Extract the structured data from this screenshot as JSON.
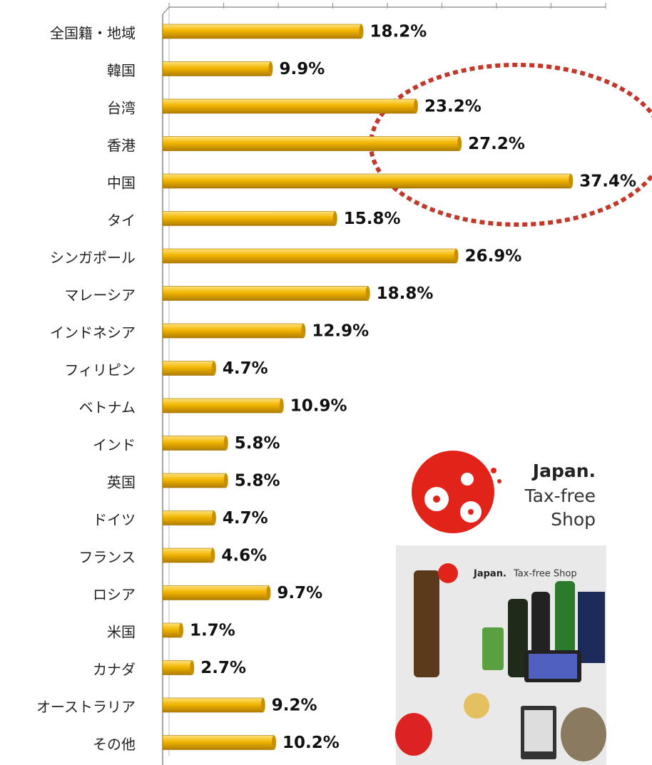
{
  "chart_data": {
    "type": "bar",
    "orientation": "horizontal",
    "categories": [
      "全国籍・地域",
      "韓国",
      "台湾",
      "香港",
      "中国",
      "タイ",
      "シンガポール",
      "マレーシア",
      "インドネシア",
      "フィリピン",
      "ベトナム",
      "インド",
      "英国",
      "ドイツ",
      "フランス",
      "ロシア",
      "米国",
      "カナダ",
      "オーストラリア",
      "その他"
    ],
    "values": [
      18.2,
      9.9,
      23.2,
      27.2,
      37.4,
      15.8,
      26.9,
      18.8,
      12.9,
      4.7,
      10.9,
      5.8,
      5.8,
      4.7,
      4.6,
      9.7,
      1.7,
      2.7,
      9.2,
      10.2
    ],
    "value_labels": [
      "18.2%",
      "9.9%",
      "23.2%",
      "27.2%",
      "37.4%",
      "15.8%",
      "26.9%",
      "18.8%",
      "12.9%",
      "4.7%",
      "10.9%",
      "5.8%",
      "5.8%",
      "4.7%",
      "4.6%",
      "9.7%",
      "1.7%",
      "2.7%",
      "9.2%",
      "10.2%"
    ],
    "color": "#f2b600",
    "xlim": [
      0,
      40
    ],
    "xticks": [
      0,
      5,
      10,
      15,
      20,
      25,
      30,
      35,
      40
    ]
  },
  "logo": {
    "lines": [
      "Japan.",
      "Tax-free",
      "Shop"
    ]
  },
  "photo_logo": {
    "brand": "Japan.",
    "text": "Tax-free Shop"
  }
}
